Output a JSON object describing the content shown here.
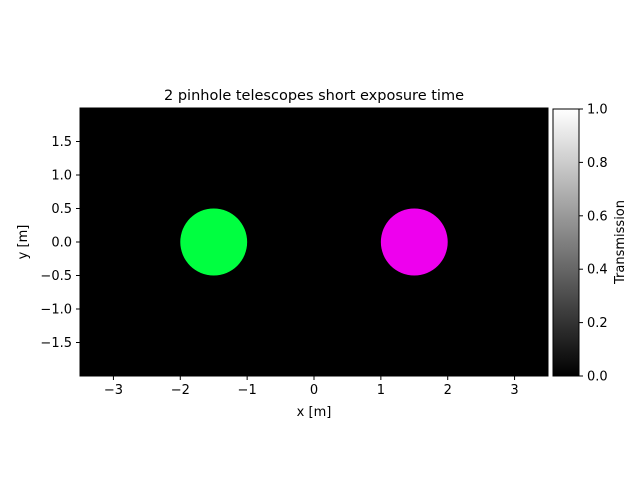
{
  "chart_data": {
    "type": "heatmap",
    "title": "2 pinhole telescopes short exposure time",
    "xlabel": "x [m]",
    "ylabel": "y [m]",
    "xlim": [
      -3.5,
      3.5
    ],
    "ylim": [
      -2.0,
      2.0
    ],
    "x_ticks": [
      -3,
      -2,
      -1,
      0,
      1,
      2,
      3
    ],
    "x_tick_labels": [
      "−3",
      "−2",
      "−1",
      "0",
      "1",
      "2",
      "3"
    ],
    "y_ticks": [
      1.5,
      1.0,
      0.5,
      0.0,
      -0.5,
      -1.0,
      -1.5
    ],
    "y_tick_labels": [
      "1.5",
      "1.0",
      "0.5",
      "0.0",
      "−0.5",
      "−1.0",
      "−1.5"
    ],
    "background_value": 0.0,
    "background_color": "#000000",
    "apertures": [
      {
        "center": [
          -1.5,
          0.0
        ],
        "radius": 0.5,
        "color": "#00ff40"
      },
      {
        "center": [
          1.5,
          0.0
        ],
        "radius": 0.5,
        "color": "#ee00ee"
      }
    ],
    "colorbar": {
      "label": "Transmission",
      "range": [
        0.0,
        1.0
      ],
      "ticks": [
        0.0,
        0.2,
        0.4,
        0.6,
        0.8,
        1.0
      ],
      "tick_labels": [
        "0.0",
        "0.2",
        "0.4",
        "0.6",
        "0.8",
        "1.0"
      ],
      "colormap": "gray"
    },
    "grid": false
  }
}
